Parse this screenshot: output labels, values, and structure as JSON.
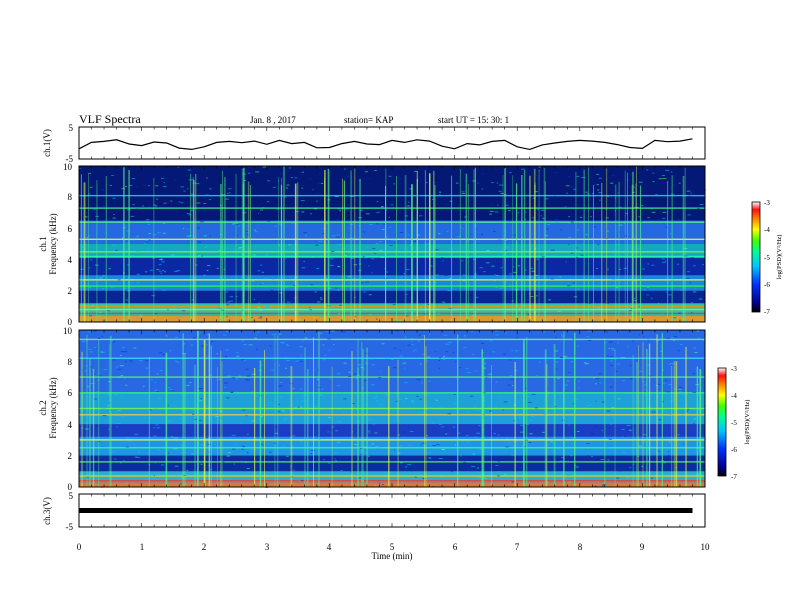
{
  "header": {
    "title": "VLF Spectra",
    "date": "Jan. 8 , 2017",
    "station": "station= KAP",
    "start": "start UT = 15: 30: 1"
  },
  "chart_data": [
    {
      "type": "line",
      "ylabel": "ch.1(V)",
      "ylim": [
        -5,
        5
      ],
      "yticks": [
        "5",
        "-5"
      ],
      "xlim": [
        0,
        10
      ],
      "series": [
        {
          "x": [
            0,
            0.2,
            0.4,
            0.6,
            0.8,
            1.0,
            1.2,
            1.4,
            1.6,
            1.8,
            2.0,
            2.2,
            2.4,
            2.6,
            2.8,
            3.0,
            3.2,
            3.4,
            3.6,
            3.8,
            4.0,
            4.2,
            4.4,
            4.6,
            4.8,
            5.0,
            5.2,
            5.4,
            5.6,
            5.8,
            6.0,
            6.2,
            6.4,
            6.6,
            6.8,
            7.0,
            7.2,
            7.4,
            7.6,
            7.8,
            8.0,
            8.2,
            8.4,
            8.6,
            8.8,
            9.0,
            9.2,
            9.4,
            9.6,
            9.8
          ],
          "y": [
            -1.8,
            0.2,
            0.5,
            1.0,
            -0.3,
            -0.8,
            0.3,
            0.0,
            -1.6,
            -2.0,
            -1.2,
            0.2,
            0.5,
            0.1,
            0.6,
            -0.4,
            0.8,
            -0.2,
            0.2,
            -1.5,
            -1.4,
            -0.2,
            0.5,
            -0.3,
            -0.5,
            0.8,
            0.2,
            1.0,
            0.6,
            -1.0,
            -1.8,
            -0.2,
            -0.6,
            0.5,
            0.8,
            -1.2,
            -2.0,
            -0.6,
            0.0,
            0.5,
            0.8,
            0.6,
            0.2,
            -0.5,
            -1.4,
            -1.7,
            0.8,
            0.4,
            0.6,
            1.3
          ]
        }
      ]
    },
    {
      "type": "heatmap",
      "title": "ch.1",
      "ylabel": "Frequency (kHz)",
      "ylim": [
        0,
        10
      ],
      "yticks": [
        "0",
        "2",
        "4",
        "6",
        "8",
        "10"
      ],
      "xlim": [
        0,
        10
      ],
      "colorbar": {
        "label": "log(PSD)(V²/Hz)",
        "range": [
          -7,
          -3
        ],
        "ticks": [
          "-3",
          "-4",
          "-5",
          "-6",
          "-7"
        ]
      }
    },
    {
      "type": "heatmap",
      "title": "ch.2",
      "ylabel": "Frequency (kHz)",
      "ylim": [
        0,
        10
      ],
      "yticks": [
        "0",
        "2",
        "4",
        "6",
        "8",
        "10"
      ],
      "xlim": [
        0,
        10
      ],
      "colorbar": {
        "label": "log(PSD)(V²/Hz)",
        "range": [
          -7,
          -3
        ],
        "ticks": [
          "-3",
          "-4",
          "-5",
          "-6",
          "-7"
        ]
      }
    },
    {
      "type": "line",
      "ylabel": "ch.3(V)",
      "ylim": [
        -5,
        5
      ],
      "yticks": [
        "5",
        "-5"
      ],
      "xlim": [
        0,
        10
      ],
      "series": [
        {
          "x": [
            0,
            9.8
          ],
          "y": [
            0,
            0
          ]
        }
      ]
    }
  ],
  "xaxis": {
    "label": "Time (min)",
    "ticks": [
      "0",
      "1",
      "2",
      "3",
      "4",
      "5",
      "6",
      "7",
      "8",
      "9",
      "10"
    ]
  }
}
